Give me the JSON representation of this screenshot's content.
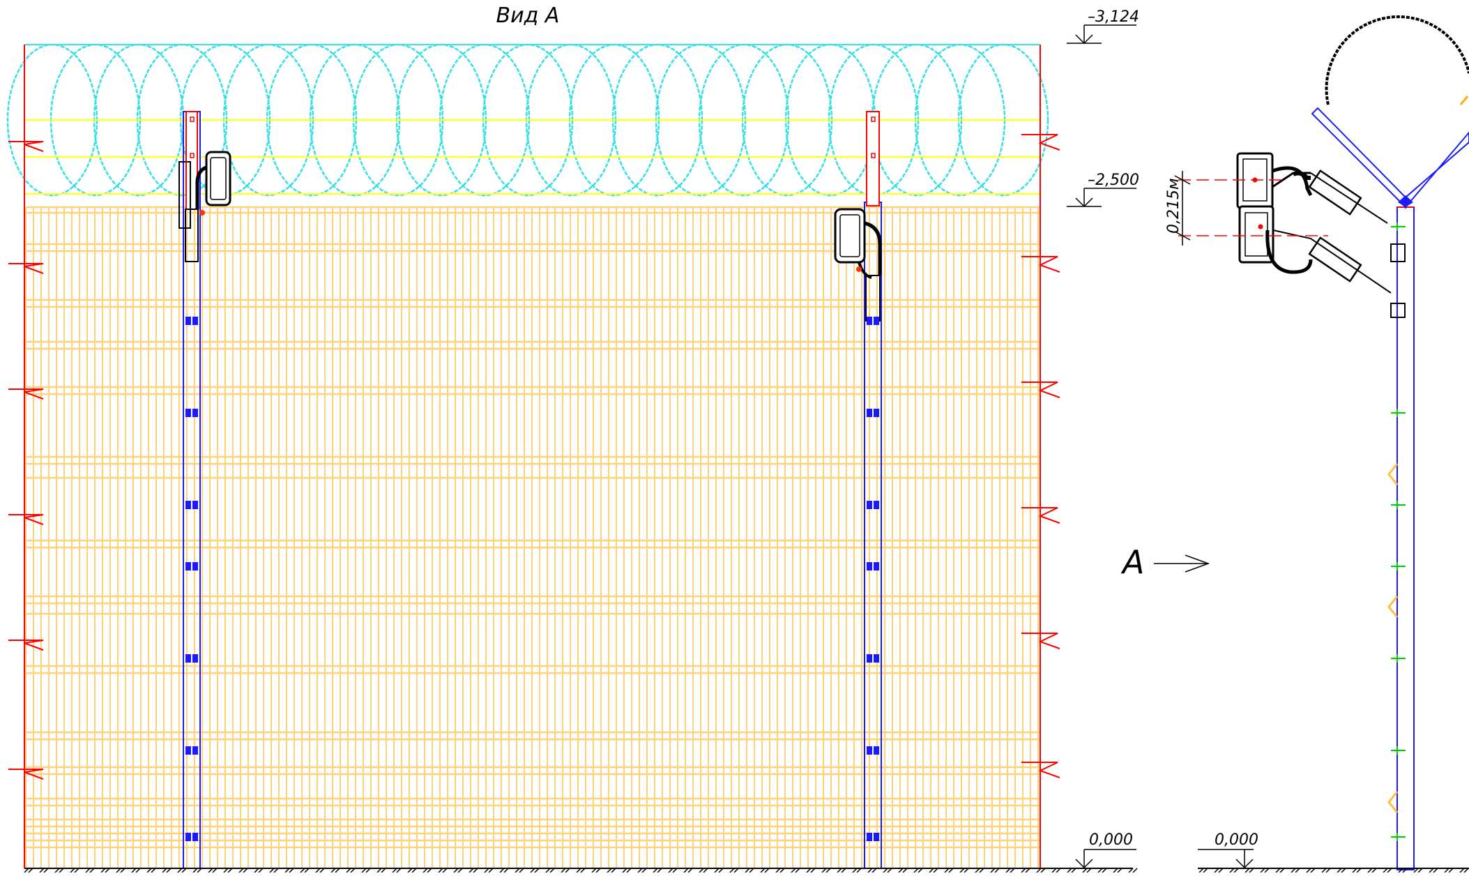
{
  "title": "Вид А",
  "levels": {
    "top": "–3,124",
    "wire_base": "–2,500",
    "ground_left": "0,000",
    "ground_right": "0,000"
  },
  "dimension_label": "0,215м",
  "view_arrow_label": "А",
  "colors": {
    "mesh": "#ffd27a",
    "razor_wire": "#33e0e6",
    "wire_lines": "#ffff33",
    "post": "#1a1aff",
    "post_top": "#ff0000",
    "break_lines": "#ff0000",
    "markers": "#00cc00",
    "ground": "#000000"
  }
}
